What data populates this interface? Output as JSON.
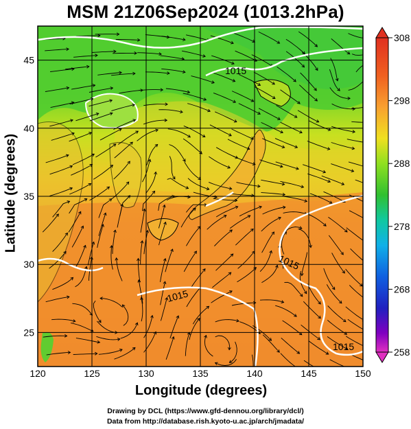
{
  "title": "MSM 21Z06Sep2024 (1013.2hPa)",
  "axes": {
    "xlabel": "Longitude (degrees)",
    "ylabel": "Latitude  (degrees)",
    "xticks": [
      "120",
      "125",
      "130",
      "135",
      "140",
      "145",
      "150"
    ],
    "yticks": [
      "25",
      "30",
      "35",
      "40",
      "45"
    ],
    "xlim": [
      120,
      150
    ],
    "ylim": [
      22.5,
      47.5
    ]
  },
  "colorbar": {
    "ticks": [
      "308",
      "298",
      "288",
      "278",
      "268",
      "258"
    ],
    "range": [
      258,
      308
    ],
    "colors": [
      "#e030c0",
      "#8000c0",
      "#2020c8",
      "#1060e0",
      "#10b0e8",
      "#10d0a0",
      "#20c040",
      "#50d020",
      "#90e020",
      "#d8e820",
      "#f8c020",
      "#f89030",
      "#f06020",
      "#e03020"
    ]
  },
  "contour_labels": [
    "1015",
    "1015",
    "1015",
    "1015"
  ],
  "credits": {
    "line1": "Drawing by DCL (https://www.gfd-dennou.org/library/dcl/)",
    "line2": "Data from http://database.rish.kyoto-u.ac.jp/arch/jmadata/"
  },
  "colors": {
    "warm": "#f0902c",
    "mid": "#e8c030",
    "green": "#50d030",
    "contour": "#ffffff"
  }
}
